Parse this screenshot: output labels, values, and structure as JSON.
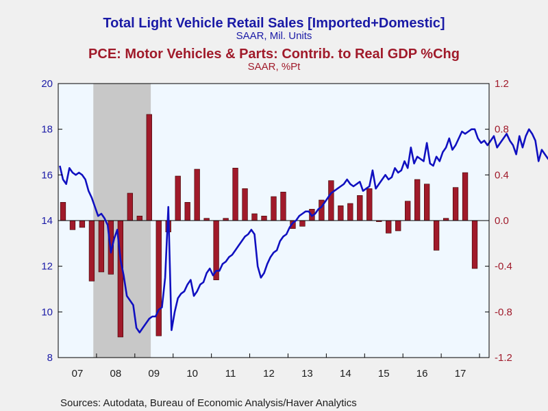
{
  "chart_data": {
    "type": "bar+line",
    "title_line": "Total Light Vehicle Retail Sales [Imported+Domestic]",
    "subtitle_line": "SAAR, Mil. Units",
    "title_bar": "PCE: Motor Vehicles & Parts: Contrib. to Real GDP %Chg",
    "subtitle_bar": "SAAR, %Pt",
    "source": "Sources:  Autodata, Bureau of Economic Analysis/Haver Analytics",
    "x_tick_labels": [
      "07",
      "08",
      "09",
      "10",
      "11",
      "12",
      "13",
      "14",
      "15",
      "16",
      "17"
    ],
    "left_axis": {
      "ylim": [
        8,
        20
      ],
      "tick_labels": [
        "8",
        "10",
        "12",
        "14",
        "16",
        "18",
        "20"
      ]
    },
    "right_axis": {
      "ylim": [
        -1.2,
        1.2
      ],
      "tick_labels": [
        "-1.2",
        "-0.8",
        "-0.4",
        "0.0",
        "0.4",
        "0.8",
        "1.2"
      ]
    },
    "recession": {
      "start": "2007-12",
      "end": "2009-06"
    },
    "colors": {
      "line": "#1010c0",
      "bars": "#a01a2a",
      "recession": "#c8c8c8",
      "plot_bg": "#f0f8ff",
      "page_bg": "#f0f0f0"
    },
    "bar_series": {
      "name": "PCE: Motor Vehicles & Parts: Contrib. to Real GDP %Chg",
      "quarters": [
        "2007Q1",
        "2007Q2",
        "2007Q3",
        "2007Q4",
        "2008Q1",
        "2008Q2",
        "2008Q3",
        "2008Q4",
        "2009Q1",
        "2009Q2",
        "2009Q3",
        "2009Q4",
        "2010Q1",
        "2010Q2",
        "2010Q3",
        "2010Q4",
        "2011Q1",
        "2011Q2",
        "2011Q3",
        "2011Q4",
        "2012Q1",
        "2012Q2",
        "2012Q3",
        "2012Q4",
        "2013Q1",
        "2013Q2",
        "2013Q3",
        "2013Q4",
        "2014Q1",
        "2014Q2",
        "2014Q3",
        "2014Q4",
        "2015Q1",
        "2015Q2",
        "2015Q3",
        "2015Q4",
        "2016Q1",
        "2016Q2",
        "2016Q3",
        "2016Q4",
        "2017Q1",
        "2017Q2",
        "2017Q3",
        "2017Q4",
        "2018Q1"
      ],
      "values": [
        0.16,
        -0.08,
        -0.06,
        -0.53,
        -0.45,
        -0.47,
        -1.02,
        0.24,
        0.04,
        0.93,
        -1.01,
        -0.1,
        0.39,
        0.16,
        0.45,
        0.02,
        -0.52,
        0.02,
        0.46,
        0.28,
        0.06,
        0.04,
        0.21,
        0.25,
        -0.07,
        -0.05,
        0.1,
        0.18,
        0.35,
        0.13,
        0.15,
        0.22,
        0.28,
        -0.01,
        -0.11,
        -0.09,
        0.17,
        0.36,
        0.32,
        -0.26,
        0.02,
        0.29,
        0.42,
        -0.42,
        null
      ]
    },
    "line_series": {
      "name": "Total Light Vehicle Retail Sales [Imported+Domestic]",
      "start": "2007-01",
      "values": [
        16.4,
        15.8,
        15.6,
        16.3,
        16.1,
        16.0,
        16.1,
        16.0,
        15.8,
        15.3,
        15.0,
        14.6,
        14.2,
        14.3,
        14.1,
        13.8,
        12.6,
        13.2,
        13.6,
        12.3,
        11.6,
        10.7,
        10.5,
        10.3,
        9.3,
        9.1,
        9.3,
        9.5,
        9.7,
        9.8,
        9.8,
        10.1,
        10.2,
        11.5,
        14.6,
        9.2,
        10.0,
        10.6,
        10.8,
        10.9,
        11.2,
        11.4,
        10.7,
        10.9,
        11.2,
        11.3,
        11.7,
        11.9,
        11.6,
        11.8,
        11.8,
        12.1,
        12.2,
        12.4,
        12.5,
        12.7,
        12.9,
        13.1,
        13.3,
        13.4,
        13.6,
        13.4,
        12.0,
        11.5,
        11.7,
        12.1,
        12.4,
        12.6,
        12.7,
        13.1,
        13.3,
        13.4,
        13.7,
        13.9,
        14.0,
        14.2,
        14.3,
        14.4,
        14.4,
        14.2,
        14.3,
        14.5,
        14.6,
        14.8,
        15.0,
        15.2,
        15.3,
        15.4,
        15.5,
        15.6,
        15.8,
        15.6,
        15.5,
        15.6,
        15.7,
        15.3,
        15.4,
        15.5,
        16.2,
        15.4,
        15.6,
        15.8,
        16.0,
        15.8,
        15.9,
        16.3,
        16.1,
        16.2,
        16.6,
        16.3,
        17.2,
        16.5,
        16.8,
        16.7,
        16.6,
        17.4,
        16.5,
        16.4,
        16.8,
        16.6,
        17.0,
        17.2,
        17.6,
        17.1,
        17.3,
        17.6,
        17.9,
        17.8,
        17.9,
        18.0,
        18.0,
        17.6,
        17.4,
        17.5,
        17.3,
        17.5,
        17.7,
        17.2,
        17.4,
        17.6,
        17.8,
        17.5,
        17.3,
        16.9,
        17.7,
        17.2,
        17.7,
        18.0,
        17.8,
        17.5,
        16.6,
        17.1,
        16.9,
        16.7,
        16.6,
        16.7,
        16.5,
        16.2,
        17.1,
        18.5,
        18.1,
        17.6,
        17.4,
        17.3,
        17.2,
        17.5,
        17.1,
        16.8,
        16.9,
        17.1,
        17.0,
        16.8,
        16.9,
        17.3,
        17.2,
        17.0,
        16.6,
        16.5,
        16.7,
        17.1,
        16.9,
        16.5,
        16.1,
        16.2,
        16.5,
        16.8,
        16.7,
        16.5
      ]
    }
  }
}
